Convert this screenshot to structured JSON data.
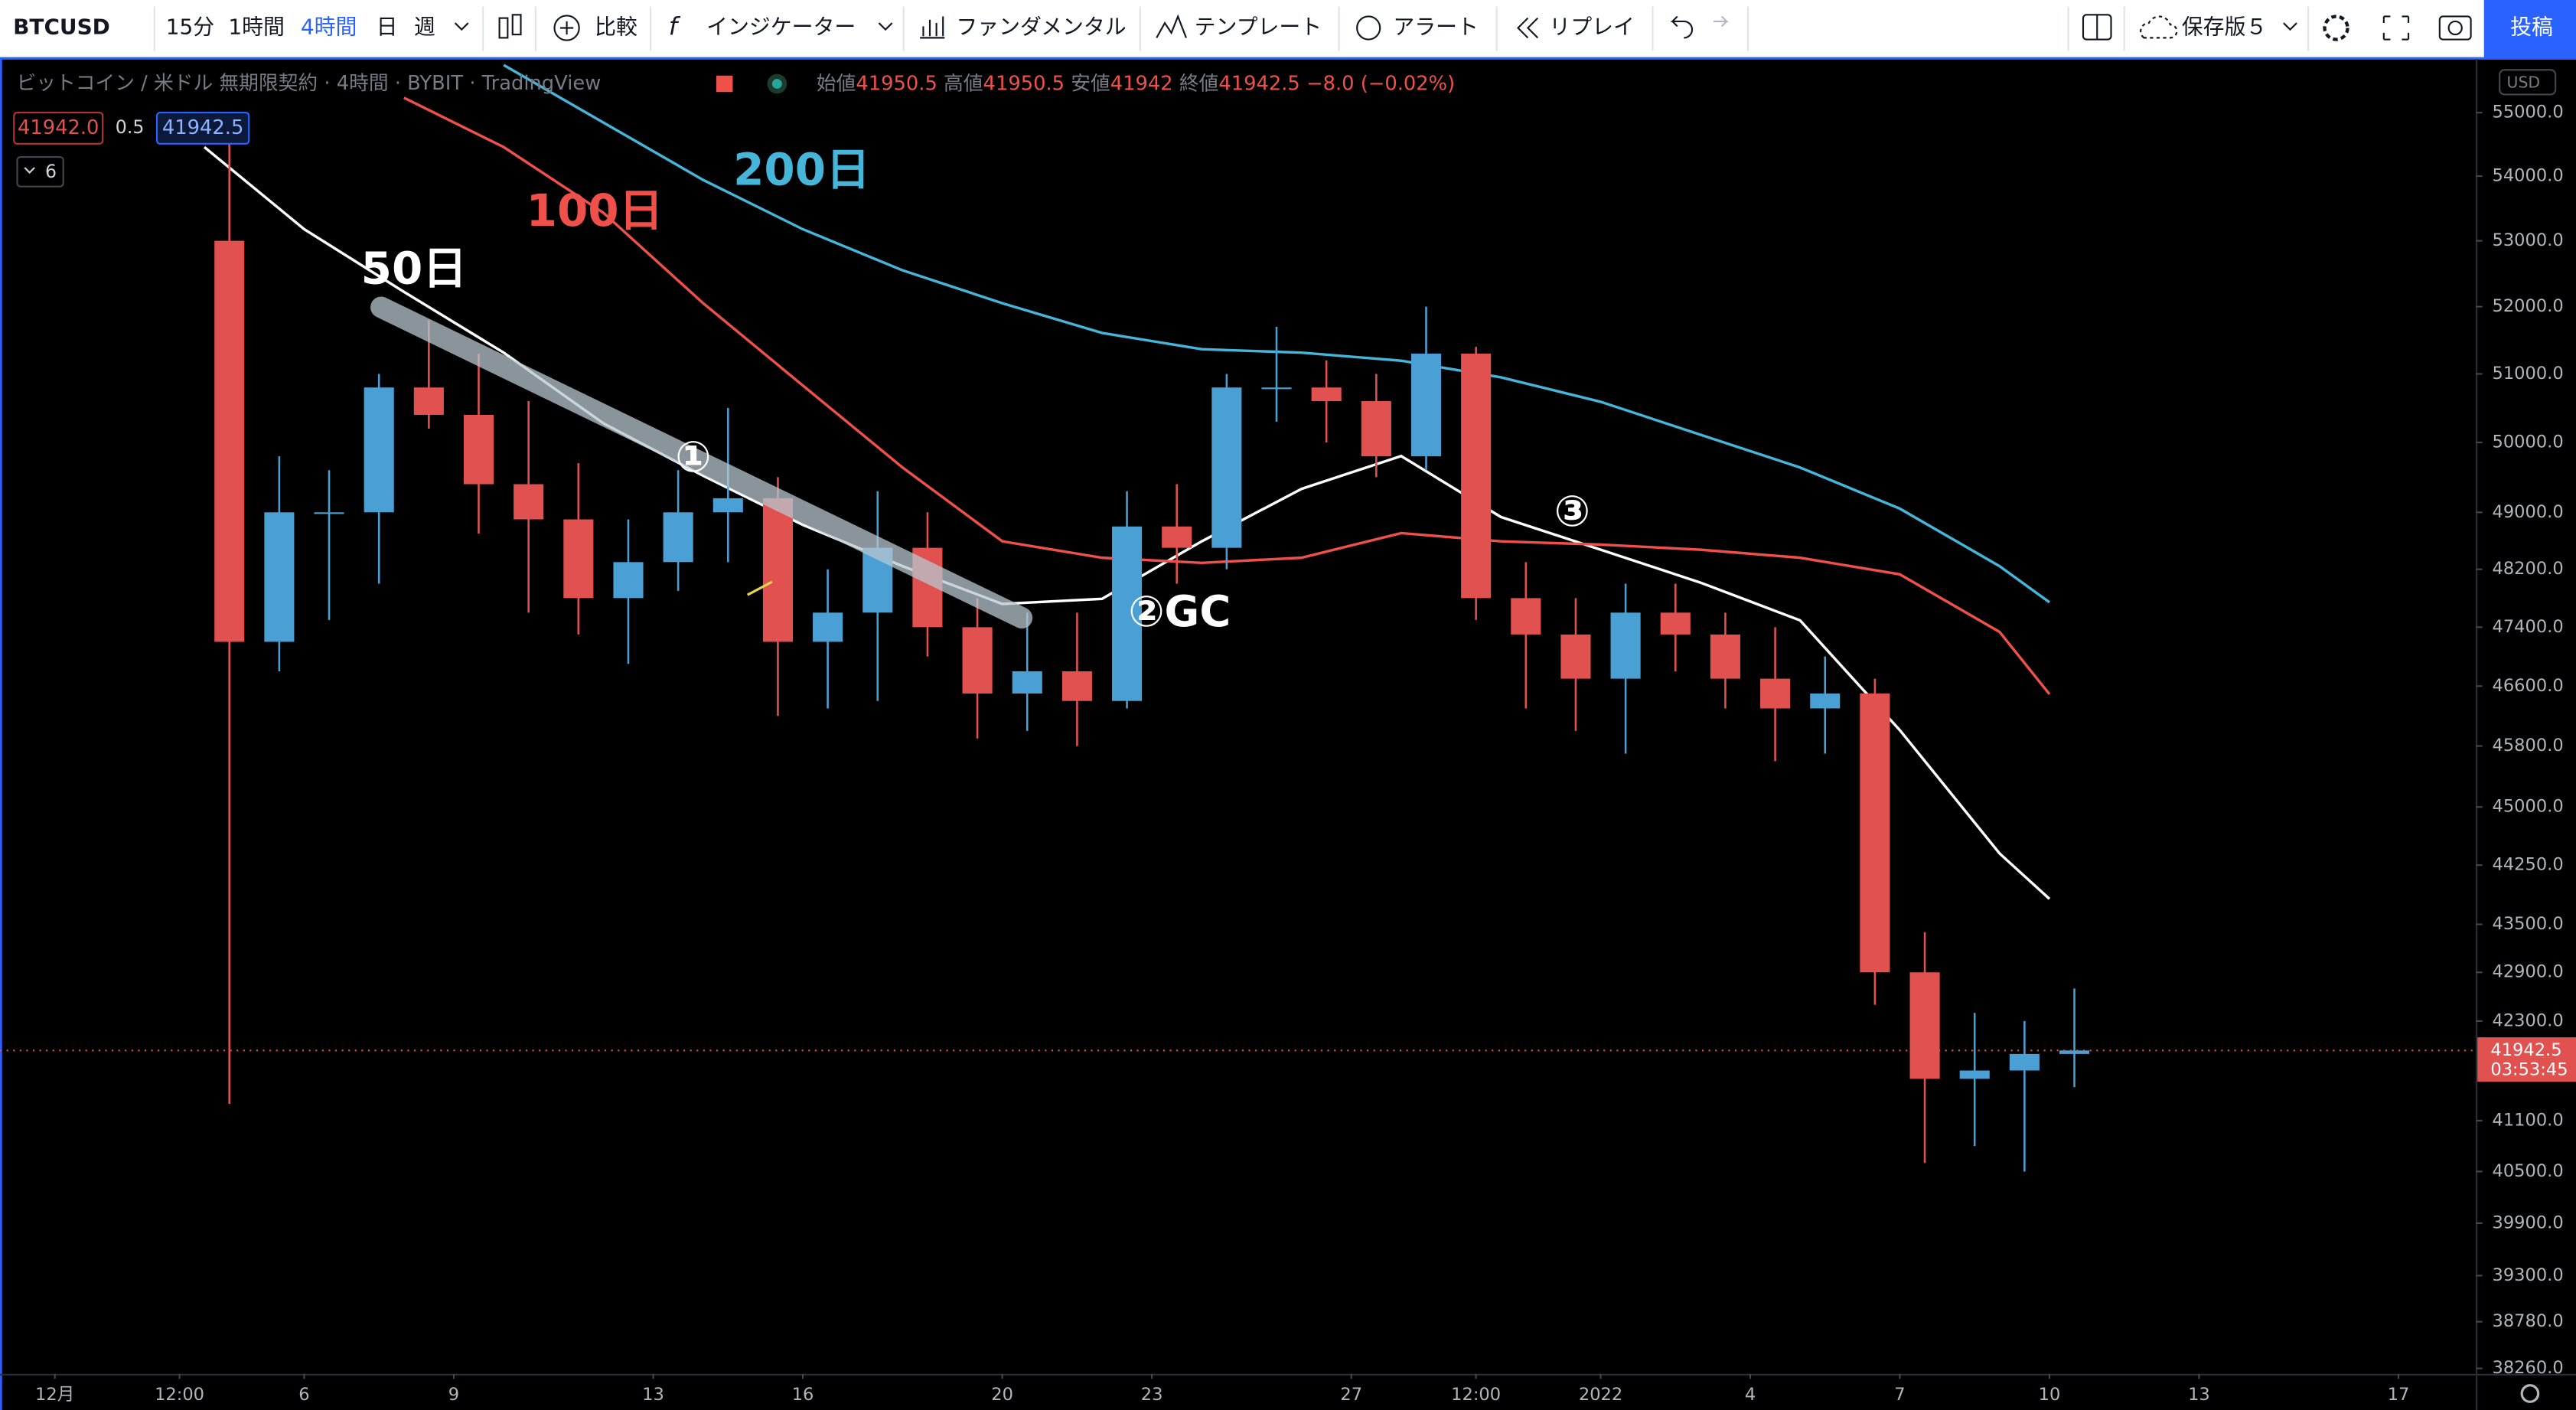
{
  "toolbar": {
    "symbol": "BTCUSD",
    "intervals": [
      "15分",
      "1時間",
      "4時間",
      "日",
      "週"
    ],
    "buttons": [
      "比較",
      "インジケーター",
      "ファンダメンタル",
      "テンプレート",
      "アラート",
      "リプレイ"
    ],
    "save": "保存版５",
    "publish": "投稿"
  },
  "legend": {
    "title": "ビットコイン / 米ドル 無期限契約 · 4時間 · BYBIT · TradingView",
    "ohlc": [
      {
        "label": "始値",
        "value": 41950.5
      },
      {
        "label": "高値",
        "value": 41950.5
      },
      {
        "label": "安値",
        "value": 41942.0
      },
      {
        "label": "終値",
        "value": 41942.5
      }
    ],
    "change": "−8.0 (−0.02%)",
    "bid": "41942.0",
    "spread": 0.5,
    "ask": 41942.5,
    "indicator_count": 6
  },
  "price_axis": {
    "currency": "USD",
    "countdown": "03:53:45"
  },
  "chart_data": {
    "type": "candlestick",
    "log": true,
    "xlim": [
      -1.1,
      48.55
    ],
    "ylim": [
      38200,
      55830
    ],
    "xticks": [
      {
        "value": 0,
        "label": "12月"
      },
      {
        "value": 2.5,
        "label": "12:00"
      },
      {
        "value": 5,
        "label": "6"
      },
      {
        "value": 8,
        "label": "9"
      },
      {
        "value": 12,
        "label": "13"
      },
      {
        "value": 15,
        "label": "16"
      },
      {
        "value": 19,
        "label": "20"
      },
      {
        "value": 22,
        "label": "23"
      },
      {
        "value": 26,
        "label": "27"
      },
      {
        "value": 28.5,
        "label": "12:00"
      },
      {
        "value": 31,
        "label": "2022"
      },
      {
        "value": 34,
        "label": "4"
      },
      {
        "value": 37,
        "label": "7"
      },
      {
        "value": 40,
        "label": "10"
      },
      {
        "value": 43,
        "label": "13"
      },
      {
        "value": 47,
        "label": "17"
      }
    ],
    "yticks": [
      {
        "value": 55000,
        "label": "55000.0"
      },
      {
        "value": 54000,
        "label": "54000.0"
      },
      {
        "value": 53000,
        "label": "53000.0"
      },
      {
        "value": 52000,
        "label": "52000.0"
      },
      {
        "value": 51000,
        "label": "51000.0"
      },
      {
        "value": 50000,
        "label": "50000.0"
      },
      {
        "value": 49000,
        "label": "49000.0"
      },
      {
        "value": 48200,
        "label": "48200.0"
      },
      {
        "value": 47400,
        "label": "47400.0"
      },
      {
        "value": 46600,
        "label": "46600.0"
      },
      {
        "value": 45800,
        "label": "45800.0"
      },
      {
        "value": 45000,
        "label": "45000.0"
      },
      {
        "value": 44250,
        "label": "44250.0"
      },
      {
        "value": 43500,
        "label": "43500.0"
      },
      {
        "value": 42900,
        "label": "42900.0"
      },
      {
        "value": 42300,
        "label": "42300.0"
      },
      {
        "value": 41100,
        "label": "41100.0"
      },
      {
        "value": 40500,
        "label": "40500.0"
      },
      {
        "value": 39900,
        "label": "39900.0"
      },
      {
        "value": 39300,
        "label": "39300.0"
      },
      {
        "value": 38780,
        "label": "38780.0"
      },
      {
        "value": 38260,
        "label": "38260.0"
      }
    ],
    "up_color": "#4a9fd5",
    "down_color": "#e0514f",
    "candles": {
      "x": [
        3.5,
        4.5,
        5.5,
        6.5,
        7.5,
        8.5,
        9.5,
        10.5,
        11.5,
        12.5,
        13.5,
        14.5,
        15.5,
        16.5,
        17.5,
        18.5,
        19.5,
        20.5,
        21.5,
        22.5,
        23.5,
        24.5,
        25.5,
        26.5,
        27.5,
        28.5,
        29.5,
        30.5,
        31.5,
        32.5,
        33.5,
        34.5,
        35.5,
        36.5,
        37.5,
        38.5,
        39.5,
        40.5
      ],
      "open": [
        53000,
        47200,
        49000,
        49000,
        50800,
        50400,
        49400,
        48900,
        47800,
        48300,
        49000,
        49200,
        47200,
        47600,
        48500,
        47400,
        46500,
        46800,
        46400,
        48800,
        48500,
        50800,
        50800,
        50600,
        49800,
        51300,
        47800,
        47300,
        46700,
        47600,
        47300,
        46700,
        46300,
        46500,
        42900,
        41600,
        41700,
        41900
      ],
      "high": [
        54500,
        49800,
        49600,
        51000,
        51800,
        51300,
        50600,
        49700,
        48900,
        49600,
        50500,
        49500,
        48200,
        49300,
        49000,
        47800,
        47600,
        47600,
        49300,
        49400,
        51000,
        51700,
        51200,
        51000,
        52000,
        51400,
        48300,
        47800,
        48000,
        48000,
        47600,
        47400,
        47000,
        46700,
        43400,
        42400,
        42300,
        42700
      ],
      "low": [
        41300,
        46800,
        47500,
        48000,
        50200,
        48700,
        47600,
        47300,
        46900,
        47900,
        48300,
        46200,
        46300,
        46400,
        47000,
        45900,
        46000,
        45800,
        46300,
        48000,
        48200,
        50300,
        50000,
        49500,
        49600,
        47500,
        46300,
        46000,
        45700,
        46800,
        46300,
        45600,
        45700,
        42500,
        40600,
        40800,
        40500,
        41500
      ],
      "close": [
        47200,
        49000,
        49000,
        50800,
        50400,
        49400,
        48900,
        47800,
        48300,
        49000,
        49200,
        47200,
        47600,
        48500,
        47400,
        46500,
        46800,
        46400,
        48800,
        48500,
        50800,
        50800,
        50600,
        49800,
        51300,
        47800,
        47300,
        46700,
        47600,
        47300,
        46700,
        46300,
        46500,
        42900,
        41600,
        41700,
        41900,
        41942.5
      ]
    },
    "x": [
      3,
      5,
      7,
      9,
      11,
      13,
      15,
      17,
      19,
      21,
      23,
      25,
      27,
      29,
      31,
      33,
      35,
      37,
      39,
      40
    ],
    "series": [
      {
        "name": "50日",
        "color": "#ffffff",
        "values": [
          54454,
          53177,
          52224,
          51314,
          50277,
          49520,
          48822,
          48244,
          47720,
          47790,
          48590,
          49333,
          49803,
          48934,
          48473,
          48015,
          47494,
          46010,
          44400,
          43820
        ]
      },
      {
        "name": "100日",
        "color": "#f0504a",
        "values": [
          null,
          null,
          55236,
          54454,
          53430,
          52052,
          50830,
          49638,
          48590,
          48360,
          48290,
          48360,
          48706,
          48590,
          48545,
          48473,
          48360,
          48130,
          47337,
          46491
        ]
      },
      {
        "name": "200日",
        "color": "#45b5d9",
        "values": [
          null,
          null,
          null,
          55760,
          54843,
          53940,
          53177,
          52549,
          52052,
          51607,
          51364,
          51314,
          51195,
          50950,
          50590,
          50111,
          49638,
          49052,
          48244,
          47743
        ]
      }
    ],
    "last_price": 41942.5,
    "annotations": [
      "①",
      "②GC",
      "③"
    ]
  }
}
